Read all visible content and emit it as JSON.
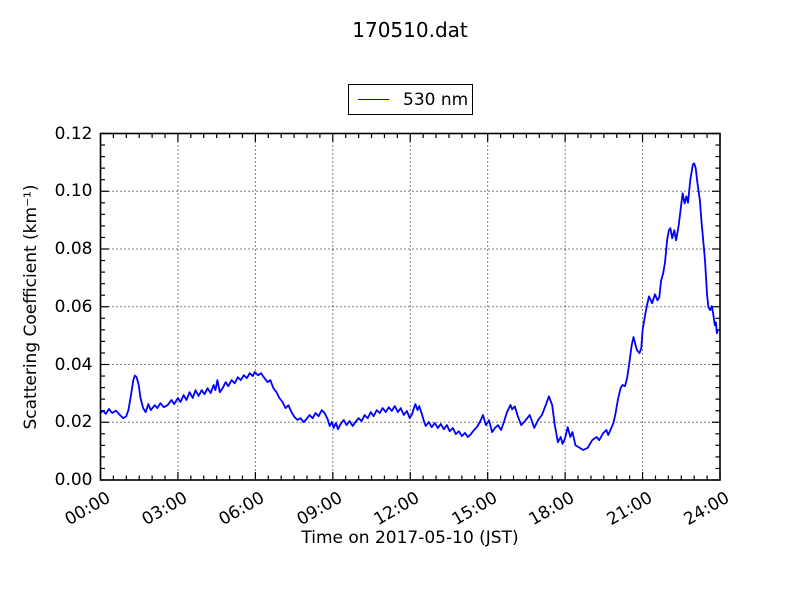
{
  "figure": {
    "background": "#ffffff",
    "text_color": "#000000"
  },
  "legend": {
    "label": "530 nm",
    "line_color": "#0000ff",
    "position": "upper center, above axes"
  },
  "chart_data": {
    "type": "line",
    "title": "170510.dat",
    "xlabel": "Time on 2017-05-10 (JST)",
    "ylabel": "Scattering Coefficient (km⁻¹)",
    "xlim_hours": [
      0,
      24
    ],
    "ylim": [
      0.0,
      0.12
    ],
    "grid": "dotted lines at major ticks, both axes",
    "xticks": [
      {
        "hour": 0,
        "label": "00:00"
      },
      {
        "hour": 3,
        "label": "03:00"
      },
      {
        "hour": 6,
        "label": "06:00"
      },
      {
        "hour": 9,
        "label": "09:00"
      },
      {
        "hour": 12,
        "label": "12:00"
      },
      {
        "hour": 15,
        "label": "15:00"
      },
      {
        "hour": 18,
        "label": "18:00"
      },
      {
        "hour": 21,
        "label": "21:00"
      },
      {
        "hour": 24,
        "label": "24:00"
      }
    ],
    "yticks": [
      {
        "value": 0.0,
        "label": "0.00"
      },
      {
        "value": 0.02,
        "label": "0.02"
      },
      {
        "value": 0.04,
        "label": "0.04"
      },
      {
        "value": 0.06,
        "label": "0.06"
      },
      {
        "value": 0.08,
        "label": "0.08"
      },
      {
        "value": 0.1,
        "label": "0.10"
      },
      {
        "value": 0.12,
        "label": "0.12"
      }
    ],
    "minor_x_step_hours": 0.5,
    "minor_y_step": 0.004,
    "series": [
      {
        "name": "530 nm",
        "color": "#0000ff",
        "points": [
          [
            0.0,
            0.0232
          ],
          [
            0.1,
            0.024
          ],
          [
            0.2,
            0.0229
          ],
          [
            0.33,
            0.0246
          ],
          [
            0.45,
            0.0232
          ],
          [
            0.6,
            0.024
          ],
          [
            0.75,
            0.0225
          ],
          [
            0.88,
            0.0214
          ],
          [
            1.0,
            0.0221
          ],
          [
            1.08,
            0.0242
          ],
          [
            1.18,
            0.0294
          ],
          [
            1.27,
            0.0346
          ],
          [
            1.33,
            0.0362
          ],
          [
            1.4,
            0.0356
          ],
          [
            1.48,
            0.0329
          ],
          [
            1.55,
            0.0284
          ],
          [
            1.65,
            0.0249
          ],
          [
            1.75,
            0.0235
          ],
          [
            1.85,
            0.0263
          ],
          [
            1.95,
            0.0242
          ],
          [
            2.1,
            0.0259
          ],
          [
            2.2,
            0.0249
          ],
          [
            2.32,
            0.0266
          ],
          [
            2.45,
            0.0252
          ],
          [
            2.6,
            0.0259
          ],
          [
            2.75,
            0.0277
          ],
          [
            2.85,
            0.0263
          ],
          [
            3.0,
            0.0284
          ],
          [
            3.1,
            0.027
          ],
          [
            3.22,
            0.0294
          ],
          [
            3.33,
            0.0277
          ],
          [
            3.45,
            0.0304
          ],
          [
            3.57,
            0.0284
          ],
          [
            3.68,
            0.0311
          ],
          [
            3.8,
            0.0291
          ],
          [
            3.92,
            0.0311
          ],
          [
            4.03,
            0.0297
          ],
          [
            4.15,
            0.0318
          ],
          [
            4.27,
            0.0301
          ],
          [
            4.38,
            0.0329
          ],
          [
            4.45,
            0.0311
          ],
          [
            4.53,
            0.0346
          ],
          [
            4.62,
            0.0304
          ],
          [
            4.73,
            0.0318
          ],
          [
            4.85,
            0.0339
          ],
          [
            4.95,
            0.0325
          ],
          [
            5.08,
            0.0346
          ],
          [
            5.2,
            0.0335
          ],
          [
            5.32,
            0.0356
          ],
          [
            5.43,
            0.0346
          ],
          [
            5.55,
            0.0363
          ],
          [
            5.67,
            0.0353
          ],
          [
            5.78,
            0.037
          ],
          [
            5.9,
            0.036
          ],
          [
            5.97,
            0.0374
          ],
          [
            6.1,
            0.0363
          ],
          [
            6.22,
            0.037
          ],
          [
            6.35,
            0.0353
          ],
          [
            6.47,
            0.0339
          ],
          [
            6.58,
            0.0346
          ],
          [
            6.7,
            0.0318
          ],
          [
            6.82,
            0.0304
          ],
          [
            6.93,
            0.0284
          ],
          [
            7.05,
            0.027
          ],
          [
            7.17,
            0.0249
          ],
          [
            7.28,
            0.0259
          ],
          [
            7.4,
            0.0235
          ],
          [
            7.52,
            0.0218
          ],
          [
            7.63,
            0.0208
          ],
          [
            7.75,
            0.0214
          ],
          [
            7.87,
            0.0201
          ],
          [
            7.98,
            0.0211
          ],
          [
            8.1,
            0.0225
          ],
          [
            8.22,
            0.0214
          ],
          [
            8.33,
            0.0232
          ],
          [
            8.45,
            0.0221
          ],
          [
            8.57,
            0.0242
          ],
          [
            8.68,
            0.0232
          ],
          [
            8.8,
            0.0211
          ],
          [
            8.88,
            0.0187
          ],
          [
            8.97,
            0.0201
          ],
          [
            9.03,
            0.018
          ],
          [
            9.12,
            0.0197
          ],
          [
            9.2,
            0.0176
          ],
          [
            9.3,
            0.0194
          ],
          [
            9.42,
            0.0208
          ],
          [
            9.53,
            0.019
          ],
          [
            9.65,
            0.0204
          ],
          [
            9.77,
            0.0187
          ],
          [
            9.88,
            0.0201
          ],
          [
            10.0,
            0.0214
          ],
          [
            10.12,
            0.0204
          ],
          [
            10.23,
            0.0225
          ],
          [
            10.35,
            0.0214
          ],
          [
            10.47,
            0.0235
          ],
          [
            10.58,
            0.0221
          ],
          [
            10.7,
            0.0242
          ],
          [
            10.82,
            0.0232
          ],
          [
            10.93,
            0.0249
          ],
          [
            11.05,
            0.0235
          ],
          [
            11.17,
            0.0252
          ],
          [
            11.28,
            0.0239
          ],
          [
            11.4,
            0.0256
          ],
          [
            11.52,
            0.0235
          ],
          [
            11.63,
            0.0249
          ],
          [
            11.75,
            0.0225
          ],
          [
            11.87,
            0.0239
          ],
          [
            11.98,
            0.0214
          ],
          [
            12.07,
            0.0228
          ],
          [
            12.13,
            0.0246
          ],
          [
            12.2,
            0.0263
          ],
          [
            12.28,
            0.0242
          ],
          [
            12.35,
            0.0256
          ],
          [
            12.45,
            0.0228
          ],
          [
            12.53,
            0.0204
          ],
          [
            12.6,
            0.0187
          ],
          [
            12.72,
            0.0201
          ],
          [
            12.83,
            0.0183
          ],
          [
            12.95,
            0.0197
          ],
          [
            13.07,
            0.018
          ],
          [
            13.18,
            0.0194
          ],
          [
            13.3,
            0.0176
          ],
          [
            13.42,
            0.019
          ],
          [
            13.53,
            0.0169
          ],
          [
            13.65,
            0.018
          ],
          [
            13.77,
            0.0159
          ],
          [
            13.88,
            0.0169
          ],
          [
            14.0,
            0.0152
          ],
          [
            14.12,
            0.0163
          ],
          [
            14.23,
            0.0149
          ],
          [
            14.35,
            0.0159
          ],
          [
            14.47,
            0.0173
          ],
          [
            14.58,
            0.0183
          ],
          [
            14.7,
            0.0201
          ],
          [
            14.82,
            0.0225
          ],
          [
            14.93,
            0.019
          ],
          [
            15.05,
            0.0207
          ],
          [
            15.17,
            0.0166
          ],
          [
            15.28,
            0.018
          ],
          [
            15.4,
            0.019
          ],
          [
            15.52,
            0.0173
          ],
          [
            15.63,
            0.0201
          ],
          [
            15.75,
            0.0235
          ],
          [
            15.88,
            0.026
          ],
          [
            15.95,
            0.0245
          ],
          [
            16.05,
            0.0255
          ],
          [
            16.17,
            0.022
          ],
          [
            16.3,
            0.019
          ],
          [
            16.45,
            0.0205
          ],
          [
            16.63,
            0.0225
          ],
          [
            16.8,
            0.018
          ],
          [
            16.95,
            0.0207
          ],
          [
            17.1,
            0.0225
          ],
          [
            17.25,
            0.026
          ],
          [
            17.37,
            0.029
          ],
          [
            17.5,
            0.0259
          ],
          [
            17.6,
            0.019
          ],
          [
            17.72,
            0.0131
          ],
          [
            17.83,
            0.0149
          ],
          [
            17.9,
            0.0125
          ],
          [
            18.0,
            0.0145
          ],
          [
            18.1,
            0.0183
          ],
          [
            18.2,
            0.0149
          ],
          [
            18.28,
            0.0166
          ],
          [
            18.4,
            0.012
          ],
          [
            18.57,
            0.0111
          ],
          [
            18.7,
            0.0104
          ],
          [
            18.87,
            0.0111
          ],
          [
            19.05,
            0.0138
          ],
          [
            19.22,
            0.0149
          ],
          [
            19.32,
            0.0138
          ],
          [
            19.47,
            0.0162
          ],
          [
            19.6,
            0.0173
          ],
          [
            19.67,
            0.0156
          ],
          [
            19.8,
            0.0183
          ],
          [
            19.87,
            0.0197
          ],
          [
            19.95,
            0.023
          ],
          [
            20.05,
            0.028
          ],
          [
            20.15,
            0.0318
          ],
          [
            20.22,
            0.0329
          ],
          [
            20.32,
            0.0325
          ],
          [
            20.4,
            0.0353
          ],
          [
            20.5,
            0.0415
          ],
          [
            20.58,
            0.0467
          ],
          [
            20.65,
            0.0495
          ],
          [
            20.78,
            0.045
          ],
          [
            20.88,
            0.0439
          ],
          [
            20.95,
            0.0457
          ],
          [
            21.0,
            0.0519
          ],
          [
            21.1,
            0.0571
          ],
          [
            21.17,
            0.0605
          ],
          [
            21.25,
            0.0636
          ],
          [
            21.37,
            0.0612
          ],
          [
            21.48,
            0.0643
          ],
          [
            21.58,
            0.0622
          ],
          [
            21.65,
            0.0633
          ],
          [
            21.72,
            0.0691
          ],
          [
            21.8,
            0.0716
          ],
          [
            21.87,
            0.0754
          ],
          [
            21.95,
            0.083
          ],
          [
            22.02,
            0.0865
          ],
          [
            22.08,
            0.0872
          ],
          [
            22.15,
            0.0837
          ],
          [
            22.23,
            0.0865
          ],
          [
            22.3,
            0.083
          ],
          [
            22.4,
            0.0882
          ],
          [
            22.55,
            0.0993
          ],
          [
            22.63,
            0.0958
          ],
          [
            22.7,
            0.0982
          ],
          [
            22.76,
            0.096
          ],
          [
            22.85,
            0.104
          ],
          [
            22.95,
            0.1093
          ],
          [
            23.0,
            0.1096
          ],
          [
            23.06,
            0.108
          ],
          [
            23.13,
            0.1027
          ],
          [
            23.22,
            0.0968
          ],
          [
            23.28,
            0.0899
          ],
          [
            23.35,
            0.083
          ],
          [
            23.42,
            0.0761
          ],
          [
            23.5,
            0.064
          ],
          [
            23.55,
            0.0598
          ],
          [
            23.62,
            0.0588
          ],
          [
            23.68,
            0.0602
          ],
          [
            23.73,
            0.0581
          ],
          [
            23.8,
            0.0536
          ],
          [
            23.84,
            0.0546
          ],
          [
            23.88,
            0.0508
          ],
          [
            23.92,
            0.052
          ]
        ]
      }
    ]
  }
}
